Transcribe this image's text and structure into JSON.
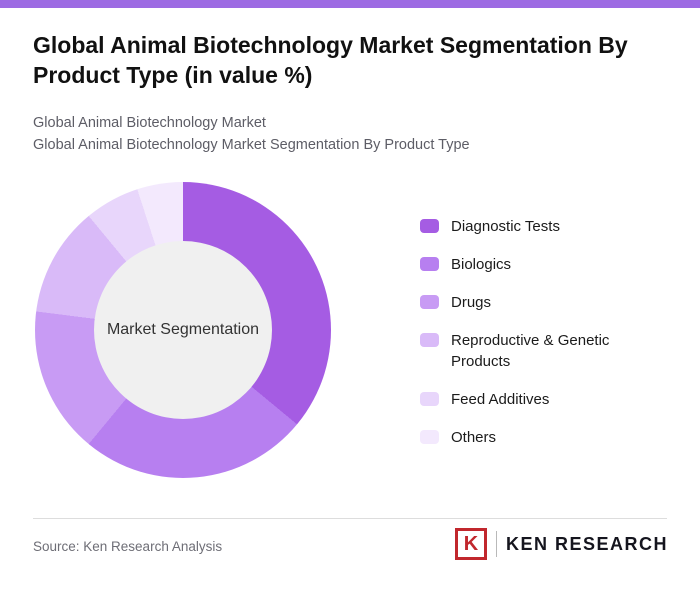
{
  "theme": {
    "accent_bar_color": "#9d6be3"
  },
  "header": {
    "title": "Global Animal Biotechnology Market Segmentation By Product Type (in value %)",
    "subtitle_line1": "Global Animal Biotechnology Market",
    "subtitle_line2": "Global Animal Biotechnology Market Segmentation By Product Type"
  },
  "chart_data": {
    "type": "pie",
    "subtype": "donut",
    "title": "Global Animal Biotechnology Market Segmentation By Product Type (in value %)",
    "center_label": "Market Segmentation",
    "unit": "value %",
    "legend_position": "right",
    "categories": [
      "Diagnostic Tests",
      "Biologics",
      "Drugs",
      "Reproductive & Genetic Products",
      "Feed Additives",
      "Others"
    ],
    "values": [
      36,
      25,
      16,
      12,
      6,
      5
    ],
    "colors": [
      "#a55ce3",
      "#b77ff0",
      "#c89bf4",
      "#d9baf8",
      "#e8d6fb",
      "#f3e9fd"
    ],
    "hole_color": "#f0f0f0",
    "start_angle_deg": 0,
    "direction": "clockwise"
  },
  "footer": {
    "source": "Source: Ken Research Analysis",
    "logo_mark": "K",
    "logo_text": "KEN RESEARCH",
    "logo_color": "#c1272d"
  }
}
